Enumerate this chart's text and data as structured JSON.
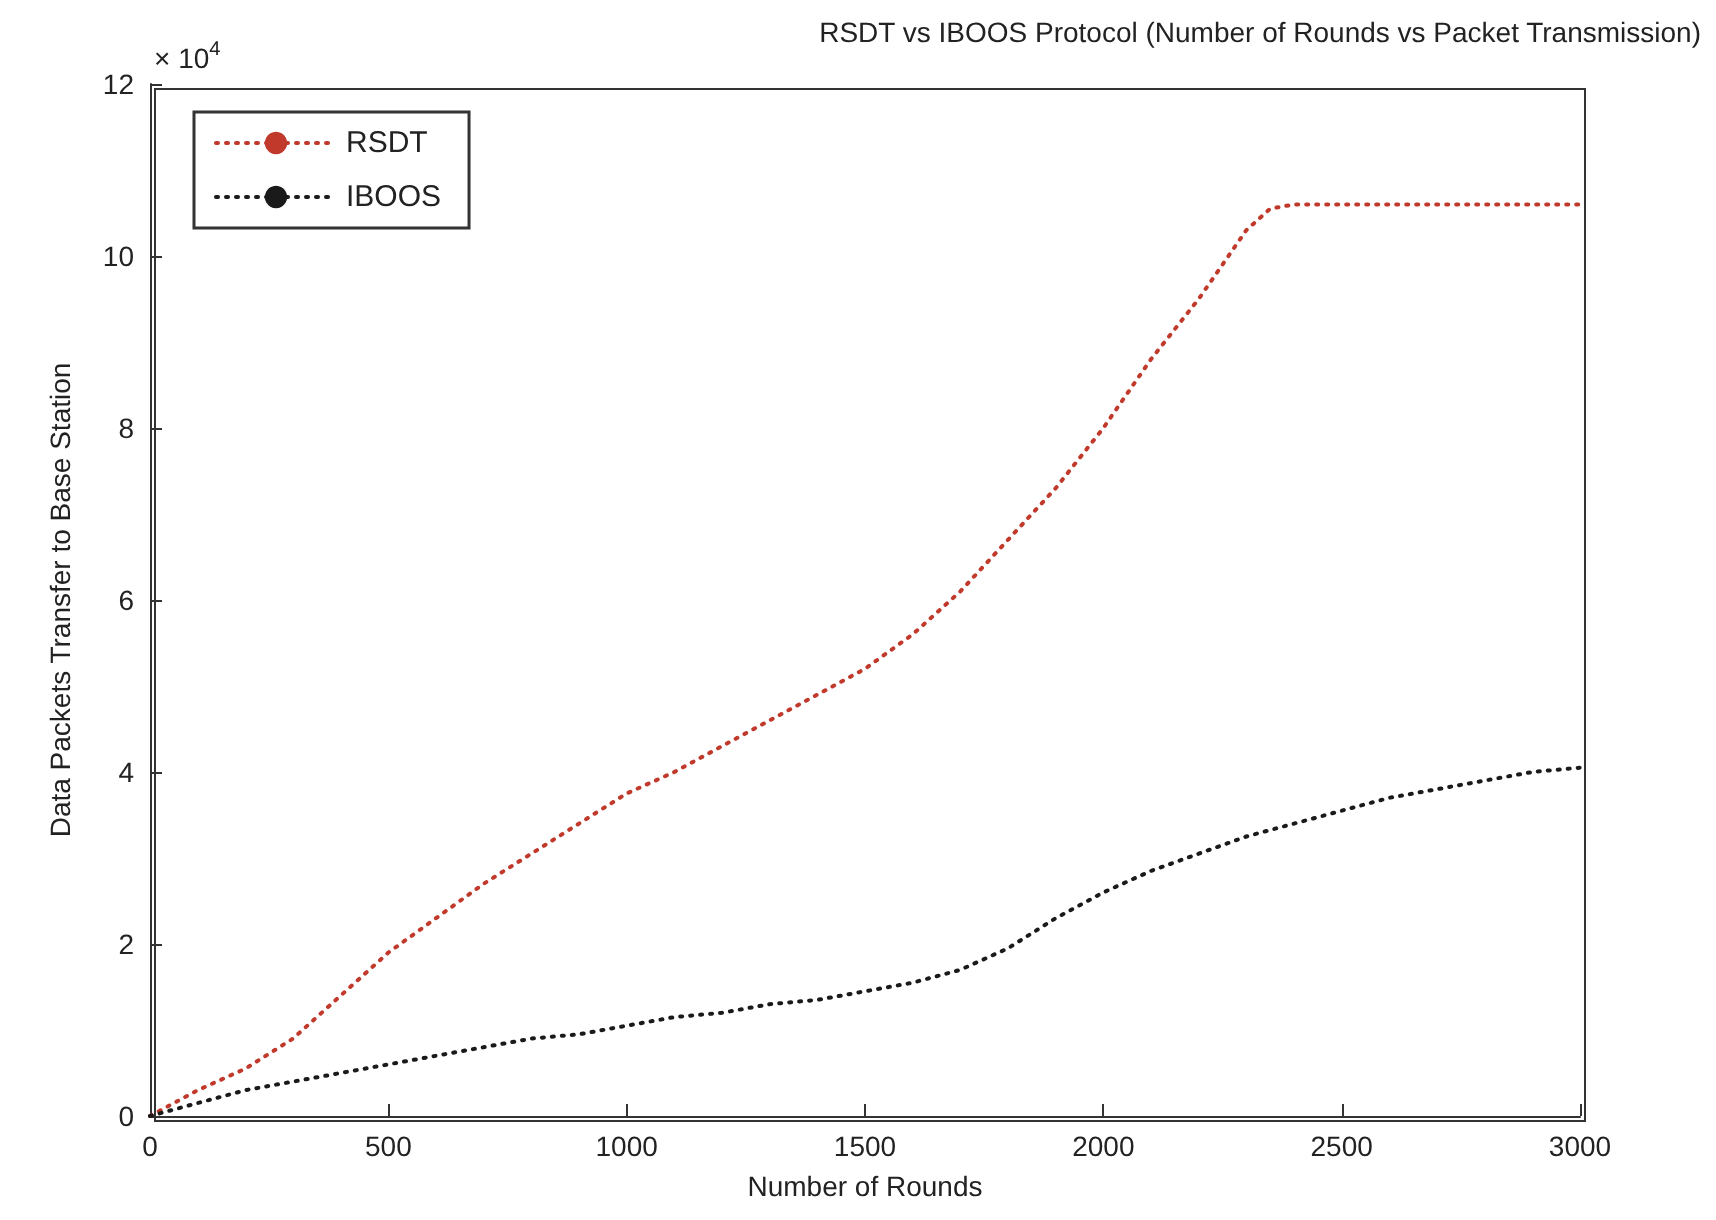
{
  "chart_data": {
    "type": "line",
    "title": "RSDT vs IBOOS Protocol (Number of Rounds vs Packet Transmission)",
    "xlabel": "Number of Rounds",
    "ylabel": "Data Packets Transfer to Base Station",
    "annotations": [
      "× 10$^{4}$"
    ],
    "series": [
      {
        "name": "RSDT",
        "color": "#c0392b",
        "x": [
          0,
          100,
          200,
          300,
          400,
          500,
          600,
          700,
          800,
          900,
          1000,
          1100,
          1200,
          1300,
          1400,
          1500,
          1600,
          1700,
          1800,
          1900,
          2000,
          2100,
          2200,
          2300,
          2350,
          2400,
          2500,
          2600,
          2800,
          3000
        ],
        "values": [
          0,
          0.3,
          0.55,
          0.9,
          1.4,
          1.9,
          2.3,
          2.7,
          3.05,
          3.4,
          3.75,
          4.0,
          4.3,
          4.6,
          4.9,
          5.2,
          5.6,
          6.1,
          6.7,
          7.3,
          8.0,
          8.8,
          9.5,
          10.3,
          10.55,
          10.6,
          10.6,
          10.6,
          10.6,
          10.6
        ]
      },
      {
        "name": "IBOOS",
        "color": "#1a1a1a",
        "x": [
          0,
          100,
          200,
          300,
          400,
          500,
          600,
          700,
          800,
          900,
          1000,
          1100,
          1200,
          1300,
          1400,
          1500,
          1600,
          1700,
          1800,
          1900,
          2000,
          2100,
          2200,
          2300,
          2400,
          2500,
          2600,
          2700,
          2800,
          2900,
          3000
        ],
        "values": [
          0,
          0.15,
          0.3,
          0.4,
          0.5,
          0.6,
          0.7,
          0.8,
          0.9,
          0.95,
          1.05,
          1.15,
          1.2,
          1.3,
          1.35,
          1.45,
          1.55,
          1.7,
          1.95,
          2.3,
          2.6,
          2.85,
          3.05,
          3.25,
          3.4,
          3.55,
          3.7,
          3.8,
          3.9,
          4.0,
          4.05
        ]
      }
    ],
    "xlim": [
      0,
      3000
    ],
    "xticks": [
      0,
      500,
      1000,
      1500,
      2000,
      2500,
      3000
    ],
    "ylim": [
      0,
      12
    ],
    "yticks": [
      0,
      2,
      4,
      6,
      8,
      10,
      12
    ],
    "grid": false,
    "legend": "top left",
    "marker": "none",
    "line_style": "dotted"
  }
}
